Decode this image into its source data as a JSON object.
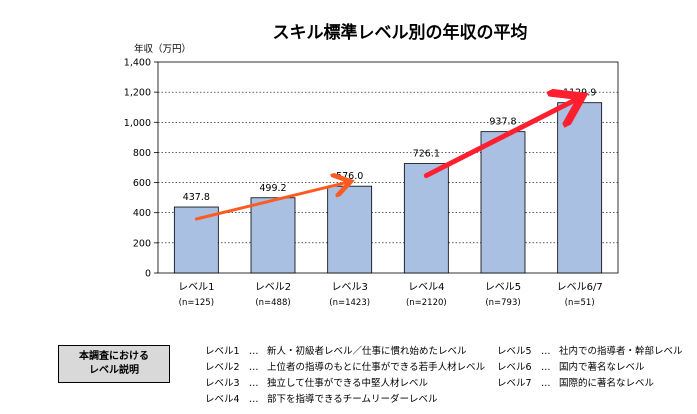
{
  "chart_data": {
    "type": "bar",
    "title": "スキル標準レベル別の年収の平均",
    "ylabel": "年収（万円）",
    "xlabel": "",
    "ylim": [
      0,
      1400
    ],
    "yticks": [
      0,
      200,
      400,
      600,
      800,
      1000,
      1200,
      1400
    ],
    "ytick_labels": [
      "0",
      "200",
      "400",
      "600",
      "800",
      "1,000",
      "1,200",
      "1,400"
    ],
    "categories": [
      "レベル1",
      "レベル2",
      "レベル3",
      "レベル4",
      "レベル5",
      "レベル6/7"
    ],
    "sample_sizes": [
      "(n=125)",
      "(n=488)",
      "(n=1423)",
      "(n=2120)",
      "(n=793)",
      "(n=51)"
    ],
    "values": [
      437.8,
      499.2,
      576.0,
      726.1,
      937.8,
      1129.9
    ],
    "value_labels": [
      "437.8",
      "499.2",
      "576.0",
      "726.1",
      "937.8",
      "1129.9"
    ],
    "bar_color": "#a9c0e3",
    "arrows": [
      {
        "from_category": 0,
        "to_category": 2,
        "color": "#ff5a1f"
      },
      {
        "from_category": 3,
        "to_category": 5,
        "color": "#ff1f2f"
      }
    ]
  },
  "legend": {
    "title_line1": "本調査における",
    "title_line2": "レベル説明"
  },
  "descriptions": {
    "left": [
      {
        "level": "レベル1",
        "sep": "…",
        "text": "新人・初級者レベル／仕事に慣れ始めたレベル"
      },
      {
        "level": "レベル2",
        "sep": "…",
        "text": "上位者の指導のもとに仕事ができる若手人材レベル"
      },
      {
        "level": "レベル3",
        "sep": "…",
        "text": "独立して仕事ができる中堅人材レベル"
      },
      {
        "level": "レベル4",
        "sep": "…",
        "text": "部下を指導できるチームリーダーレベル"
      }
    ],
    "right": [
      {
        "level": "レベル5",
        "sep": "…",
        "text": "社内での指導者・幹部レベル"
      },
      {
        "level": "レベル6",
        "sep": "…",
        "text": "国内で著名なレベル"
      },
      {
        "level": "レベル7",
        "sep": "…",
        "text": "国際的に著名なレベル"
      }
    ]
  }
}
